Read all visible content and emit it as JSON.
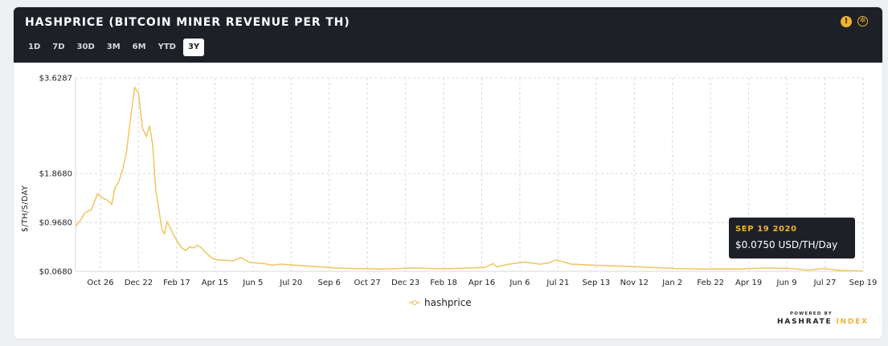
{
  "header": {
    "title": "HASHPRICE (BITCOIN MINER REVENUE PER TH)",
    "ranges": [
      "1D",
      "7D",
      "30D",
      "3M",
      "6M",
      "YTD",
      "3Y"
    ],
    "active_range": "3Y",
    "icons": [
      "info-icon",
      "aperture-icon"
    ]
  },
  "tooltip": {
    "date": "SEP 19 2020",
    "value": "$0.0750 USD/TH/Day"
  },
  "brand": {
    "powered": "POWERED BY",
    "name_main": "HASHRATE ",
    "name_accent": "INDEX"
  },
  "colors": {
    "line": "#f0c866",
    "accent": "#f0b232",
    "header_bg": "#1d2027",
    "grid": "#d9dadd"
  },
  "chart_data": {
    "type": "line",
    "title": "HASHPRICE (BITCOIN MINER REVENUE PER TH)",
    "ylabel": "$/TH/S/DAY",
    "xlabel": "",
    "ylim": [
      0.068,
      3.6287
    ],
    "y_ticks": [
      "$3.6287",
      "$1.8680",
      "$0.9680",
      "$0.0680"
    ],
    "y_tick_values": [
      3.6287,
      1.868,
      0.968,
      0.068
    ],
    "x_ticks": [
      "Oct 26",
      "Dec 22",
      "Feb 17",
      "Apr 15",
      "Jun 5",
      "Jul 20",
      "Sep 6",
      "Oct 27",
      "Dec 23",
      "Feb 18",
      "Apr 16",
      "Jun 6",
      "Jul 21",
      "Sep 13",
      "Nov 12",
      "Jan 2",
      "Feb 22",
      "Apr 19",
      "Jun 9",
      "Jul 27",
      "Sep 19"
    ],
    "grid": true,
    "legend": "bottom-center",
    "series": [
      {
        "name": "hashprice",
        "x": [
          0,
          0.006,
          0.012,
          0.02,
          0.028,
          0.034,
          0.04,
          0.046,
          0.05,
          0.055,
          0.06,
          0.065,
          0.07,
          0.075,
          0.08,
          0.085,
          0.09,
          0.094,
          0.098,
          0.1,
          0.102,
          0.105,
          0.108,
          0.11,
          0.113,
          0.116,
          0.12,
          0.125,
          0.13,
          0.135,
          0.14,
          0.145,
          0.15,
          0.155,
          0.16,
          0.165,
          0.17,
          0.175,
          0.18,
          0.19,
          0.2,
          0.21,
          0.22,
          0.23,
          0.24,
          0.25,
          0.26,
          0.27,
          0.28,
          0.29,
          0.3,
          0.31,
          0.32,
          0.33,
          0.35,
          0.37,
          0.39,
          0.41,
          0.43,
          0.45,
          0.47,
          0.5,
          0.52,
          0.53,
          0.535,
          0.55,
          0.57,
          0.59,
          0.6,
          0.61,
          0.63,
          0.66,
          0.7,
          0.73,
          0.76,
          0.8,
          0.84,
          0.86,
          0.88,
          0.91,
          0.93,
          0.95,
          0.97,
          1.0
        ],
        "values": [
          0.9,
          1.0,
          1.15,
          1.2,
          1.5,
          1.42,
          1.38,
          1.3,
          1.6,
          1.72,
          1.95,
          2.3,
          2.9,
          3.45,
          3.35,
          2.7,
          2.55,
          2.75,
          2.4,
          1.95,
          1.55,
          1.28,
          1.0,
          0.82,
          0.76,
          0.98,
          0.88,
          0.72,
          0.6,
          0.5,
          0.45,
          0.52,
          0.5,
          0.55,
          0.5,
          0.42,
          0.35,
          0.3,
          0.28,
          0.27,
          0.26,
          0.32,
          0.24,
          0.22,
          0.21,
          0.18,
          0.2,
          0.19,
          0.18,
          0.17,
          0.16,
          0.15,
          0.14,
          0.13,
          0.12,
          0.115,
          0.11,
          0.12,
          0.13,
          0.12,
          0.115,
          0.13,
          0.14,
          0.21,
          0.15,
          0.2,
          0.24,
          0.2,
          0.22,
          0.28,
          0.2,
          0.18,
          0.16,
          0.14,
          0.12,
          0.11,
          0.11,
          0.12,
          0.13,
          0.12,
          0.09,
          0.12,
          0.085,
          0.075
        ]
      }
    ]
  }
}
